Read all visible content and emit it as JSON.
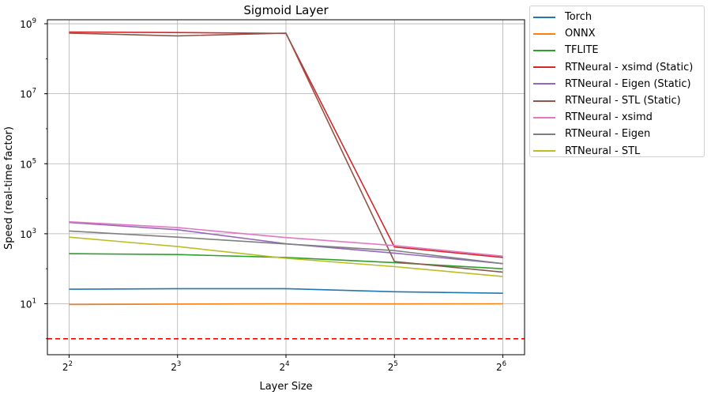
{
  "chart_data": {
    "type": "line",
    "title": "Sigmoid Layer",
    "xlabel": "Layer Size",
    "ylabel": "Speed (real-time factor)",
    "x_scale": "log2",
    "y_scale": "log10",
    "x": [
      4,
      8,
      16,
      32,
      64
    ],
    "x_tick_labels": [
      {
        "base": "2",
        "exp": "2"
      },
      {
        "base": "2",
        "exp": "3"
      },
      {
        "base": "2",
        "exp": "4"
      },
      {
        "base": "2",
        "exp": "5"
      },
      {
        "base": "2",
        "exp": "6"
      }
    ],
    "y_tick_labels": [
      {
        "base": "10",
        "exp": "1",
        "value": 10
      },
      {
        "base": "10",
        "exp": "3",
        "value": 1000
      },
      {
        "base": "10",
        "exp": "5",
        "value": 100000
      },
      {
        "base": "10",
        "exp": "7",
        "value": 10000000
      },
      {
        "base": "10",
        "exp": "9",
        "value": 1000000000
      }
    ],
    "ylim": [
      0.35,
      1300000000
    ],
    "grid": true,
    "legend_position": "outside-top-right",
    "reference_line": {
      "y": 1,
      "color": "#ff0000",
      "style": "dashed"
    },
    "series": [
      {
        "name": "Torch",
        "color": "#1f77b4",
        "values": [
          26,
          27,
          27,
          22,
          20
        ]
      },
      {
        "name": "ONNX",
        "color": "#ff7f0e",
        "values": [
          9.5,
          9.8,
          10,
          9.9,
          10
        ]
      },
      {
        "name": "TFLITE",
        "color": "#2ca02c",
        "values": [
          270,
          255,
          210,
          150,
          100
        ]
      },
      {
        "name": "RTNeural - xsimd (Static)",
        "color": "#d62728",
        "values": [
          580000000,
          560000000,
          530000000,
          420,
          210
        ]
      },
      {
        "name": "RTNeural - Eigen (Static)",
        "color": "#9467bd",
        "values": [
          2100,
          1300,
          520,
          280,
          140
        ]
      },
      {
        "name": "RTNeural - STL (Static)",
        "color": "#8c564b",
        "values": [
          540000000,
          450000000,
          540000000,
          160,
          80
        ]
      },
      {
        "name": "RTNeural - xsimd",
        "color": "#e377c2",
        "values": [
          2200,
          1500,
          780,
          460,
          230
        ]
      },
      {
        "name": "RTNeural - Eigen",
        "color": "#7f7f7f",
        "values": [
          1200,
          800,
          510,
          330,
          140
        ]
      },
      {
        "name": "RTNeural - STL",
        "color": "#bcbd22",
        "values": [
          800,
          430,
          200,
          115,
          60
        ]
      }
    ]
  }
}
